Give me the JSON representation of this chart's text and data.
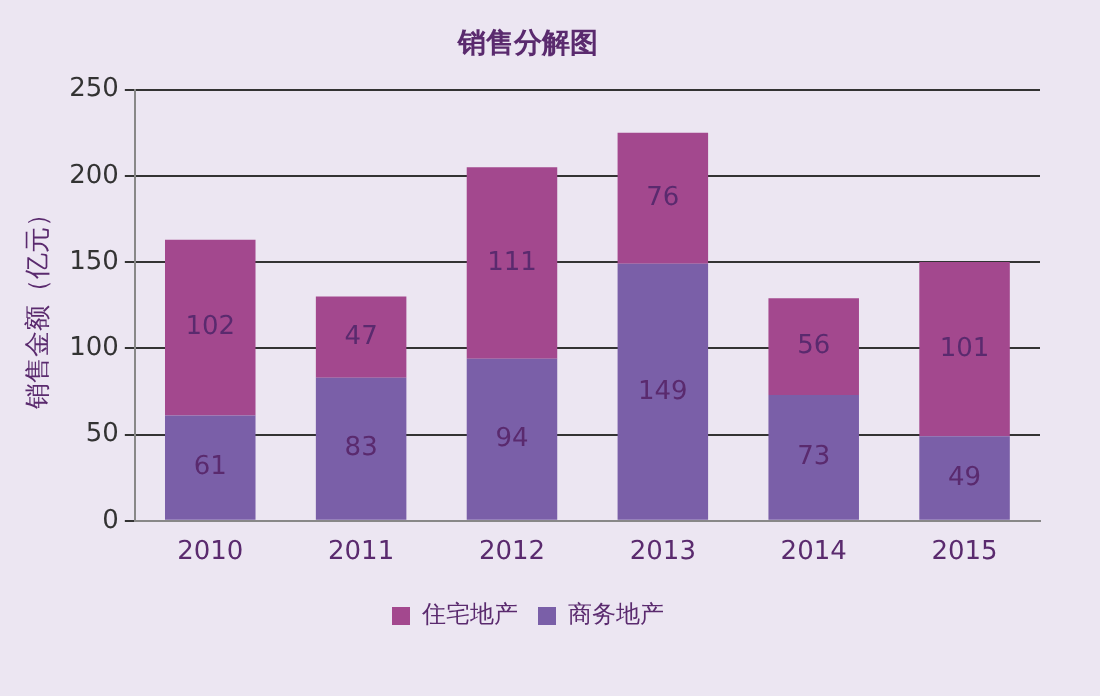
{
  "chart_data": {
    "type": "bar",
    "title": "销售分解图",
    "ylabel": "销售金额（亿元）",
    "categories": [
      "2010",
      "2011",
      "2012",
      "2013",
      "2014",
      "2015"
    ],
    "stacked": true,
    "series": [
      {
        "name": "商务地产",
        "color": "#7a5fa8",
        "values": [
          61,
          83,
          94,
          149,
          73,
          49
        ]
      },
      {
        "name": "住宅地产",
        "color": "#a3488e",
        "values": [
          102,
          47,
          111,
          76,
          56,
          101
        ]
      }
    ],
    "ylim": [
      0,
      250
    ],
    "yticks": [
      0,
      50,
      100,
      150,
      200,
      250
    ],
    "grid": "y",
    "legend": "bottom",
    "data_labels": true
  }
}
